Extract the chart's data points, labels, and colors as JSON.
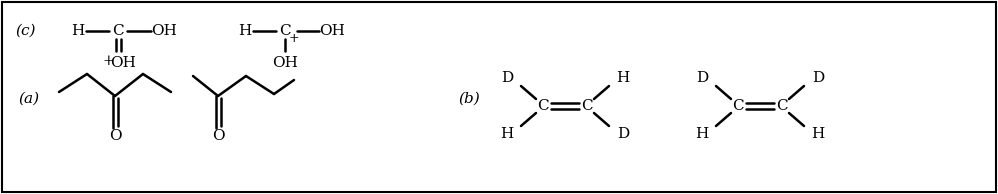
{
  "bg_color": "#ffffff",
  "border_color": "#000000",
  "fig_width": 9.98,
  "fig_height": 1.94,
  "label_a": "(a)",
  "label_b": "(b)",
  "label_c": "(c)"
}
